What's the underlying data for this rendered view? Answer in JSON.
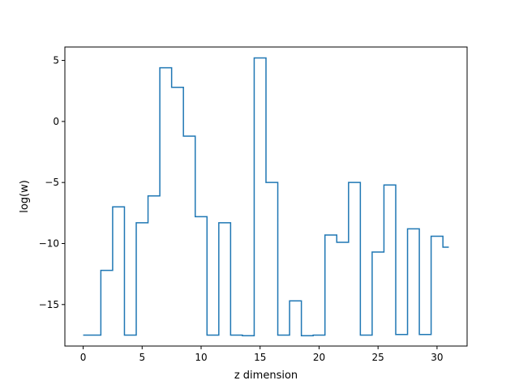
{
  "chart_data": {
    "type": "line",
    "drawstyle": "steps-mid",
    "title": "",
    "xlabel": "z dimension",
    "ylabel": "log(w)",
    "xlim": [
      -1.55,
      32.55
    ],
    "ylim": [
      -18.4,
      6.1
    ],
    "xticks": [
      0,
      5,
      10,
      15,
      20,
      25,
      30
    ],
    "yticks": [
      -15,
      -10,
      -5,
      0,
      5
    ],
    "ytick_labels": [
      "−15",
      "−10",
      "−5",
      "0",
      "5"
    ],
    "grid": false,
    "legend": "none",
    "series": [
      {
        "color": "#1f77b4",
        "x": [
          0,
          1,
          2,
          3,
          4,
          5,
          6,
          7,
          8,
          9,
          10,
          11,
          12,
          13,
          14,
          15,
          16,
          17,
          18,
          19,
          20,
          21,
          22,
          23,
          24,
          25,
          26,
          27,
          28,
          29,
          30,
          31
        ],
        "y": [
          -17.5,
          -17.5,
          -12.2,
          -7.0,
          -17.5,
          -8.3,
          -6.1,
          4.4,
          2.8,
          -1.2,
          -7.8,
          -17.5,
          -8.3,
          -17.5,
          -17.55,
          5.2,
          -5.0,
          -17.5,
          -14.7,
          -17.55,
          -17.5,
          -9.3,
          -9.9,
          -5.0,
          -17.5,
          -10.7,
          -5.2,
          -17.45,
          -8.8,
          -17.45,
          -9.4,
          -10.3
        ]
      }
    ]
  }
}
